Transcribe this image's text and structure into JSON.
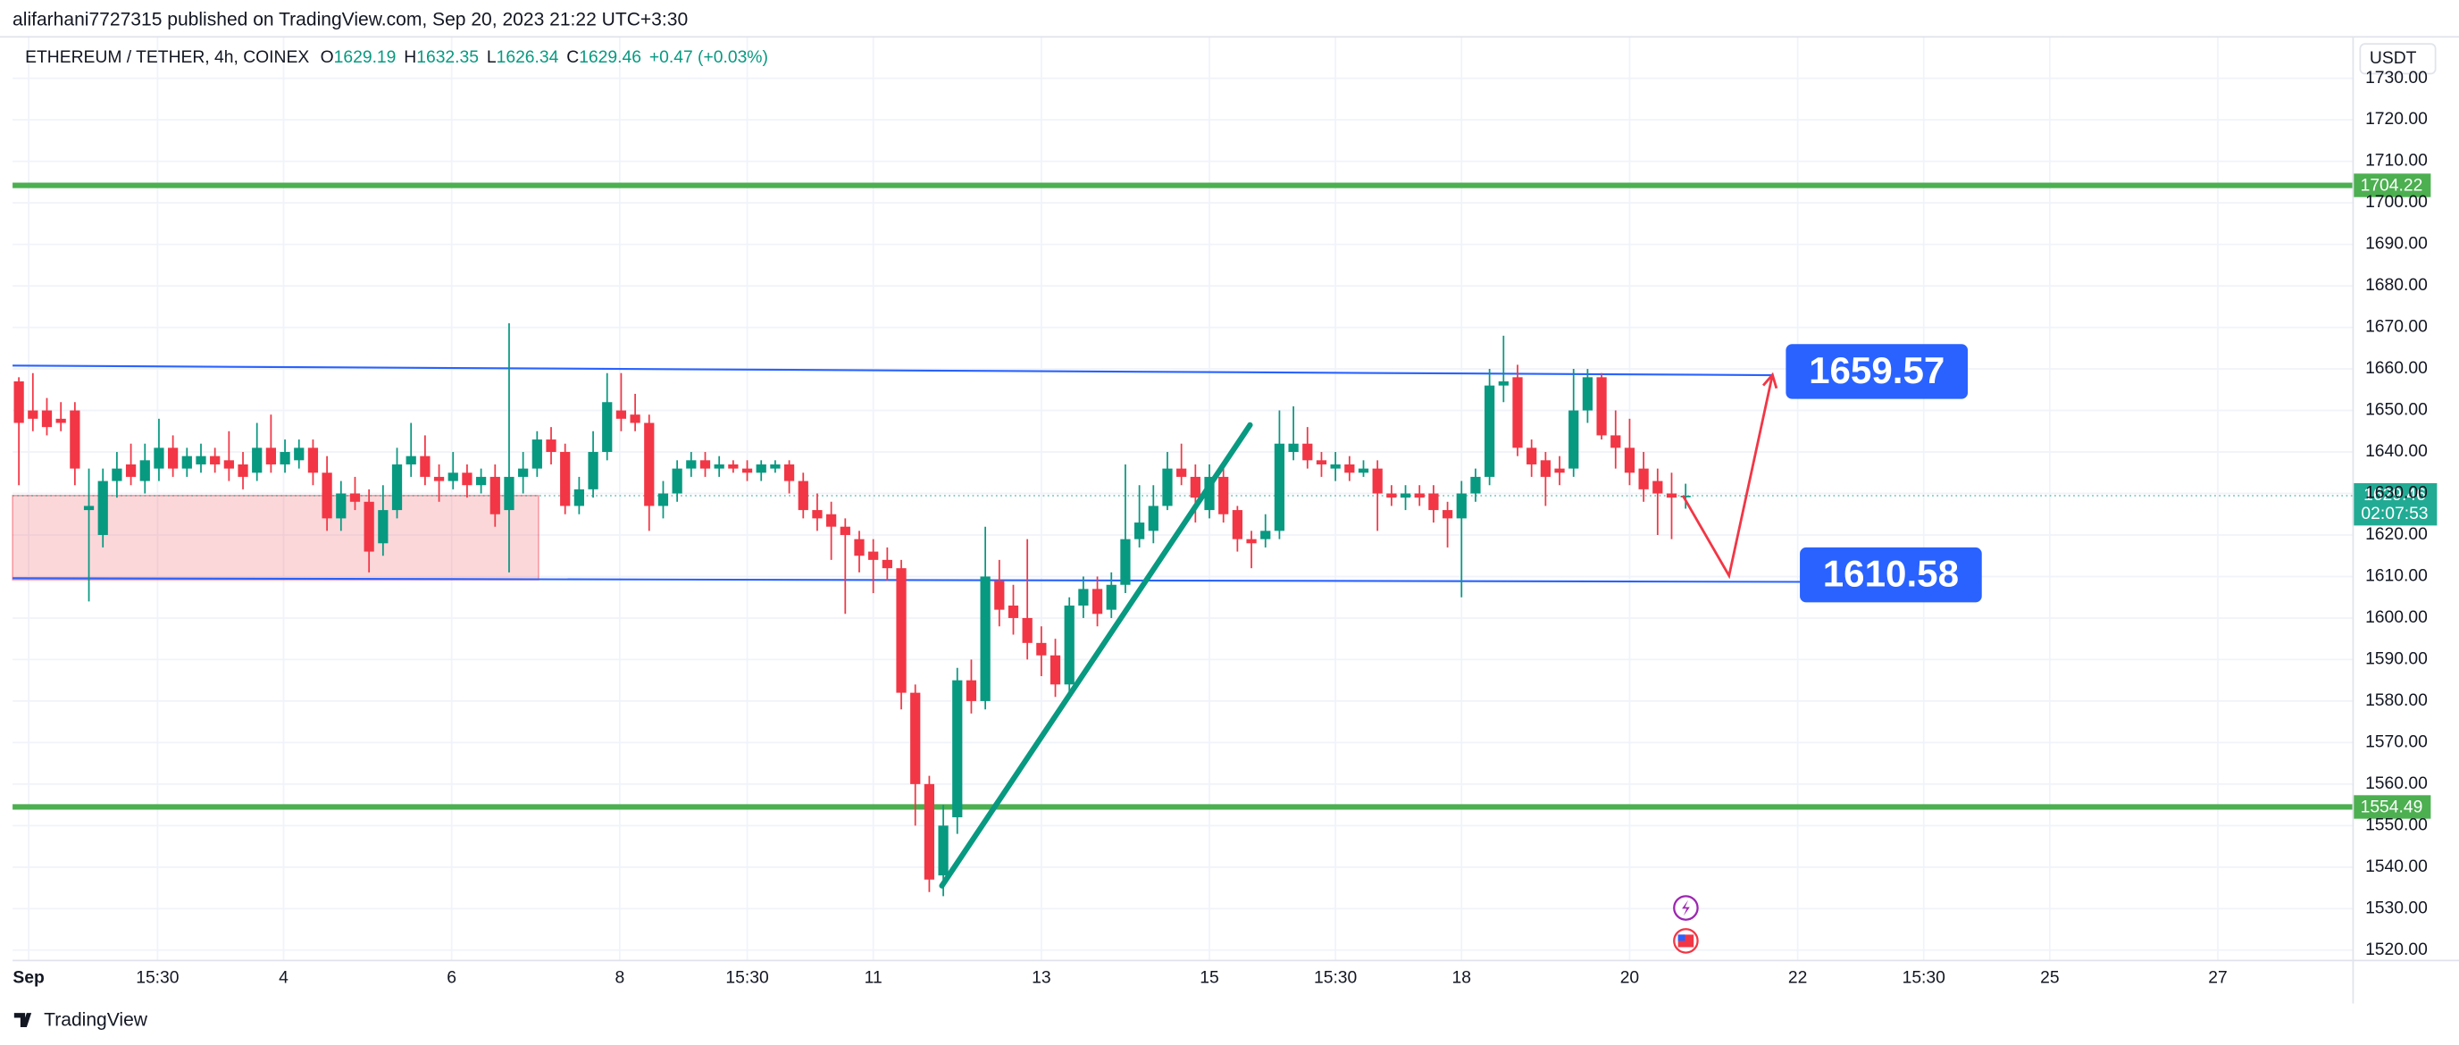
{
  "header": {
    "published": "alifarhani7727315 published on TradingView.com, Sep 20, 2023 21:22 UTC+3:30"
  },
  "legend": {
    "symbol": "ETHEREUM / TETHER, 4h, COINEX",
    "ohlc": [
      {
        "label": "O",
        "value": 1629.19
      },
      {
        "label": "H",
        "value": 1632.35
      },
      {
        "label": "L",
        "value": 1626.34
      },
      {
        "label": "C",
        "value": 1629.46
      }
    ],
    "change": "+0.47 (+0.03%)"
  },
  "currency": "USDT",
  "footer": "TradingView",
  "chart_data": {
    "type": "candlestick",
    "open": [
      1657,
      1650,
      1650,
      1648,
      1650,
      1626,
      1620,
      1633,
      1637,
      1633,
      1636,
      1641,
      1636,
      1637,
      1639,
      1638,
      1637,
      1635,
      1641,
      1637,
      1638,
      1641,
      1635,
      1624,
      1630,
      1628,
      1618,
      1626,
      1637,
      1639,
      1634,
      1633,
      1635,
      1632,
      1634,
      1626,
      1634,
      1636,
      1643,
      1640,
      1627,
      1631,
      1640,
      1650,
      1649,
      1647,
      1627,
      1630,
      1636,
      1638,
      1636,
      1637,
      1636,
      1635,
      1636,
      1637,
      1633,
      1626,
      1625,
      1622,
      1619,
      1616,
      1614,
      1612,
      1582,
      1560,
      1538,
      1552,
      1585,
      1580,
      1609,
      1603,
      1600,
      1594,
      1591,
      1584,
      1603,
      1607,
      1602,
      1608,
      1619,
      1621,
      1627,
      1636,
      1634,
      1626,
      1634,
      1626,
      1619,
      1619,
      1621,
      1640,
      1642,
      1638,
      1636,
      1637,
      1635,
      1636,
      1630,
      1629,
      1630,
      1630,
      1626,
      1624,
      1630,
      1634,
      1656,
      1658,
      1641,
      1638,
      1636,
      1636,
      1650,
      1658,
      1644,
      1641,
      1636,
      1633,
      1630,
      1629.19
    ],
    "high": [
      1658,
      1659,
      1653,
      1652,
      1652,
      1636,
      1636,
      1640,
      1642,
      1642,
      1648,
      1644,
      1641,
      1642,
      1641,
      1645,
      1640,
      1647,
      1649,
      1643,
      1643,
      1643,
      1639,
      1633,
      1634,
      1631,
      1632,
      1641,
      1647,
      1644,
      1637,
      1640,
      1637,
      1636,
      1637,
      1671,
      1640,
      1645,
      1646,
      1642,
      1634,
      1645,
      1659,
      1659,
      1654,
      1649,
      1633,
      1638,
      1640,
      1640,
      1639,
      1638,
      1638,
      1638,
      1638,
      1638,
      1635,
      1630,
      1628,
      1624,
      1621,
      1619,
      1617,
      1614,
      1584,
      1562,
      1555,
      1588,
      1590,
      1622,
      1614,
      1608,
      1619,
      1598,
      1595,
      1605,
      1610,
      1610,
      1611,
      1637,
      1632,
      1632,
      1640,
      1642,
      1637,
      1637,
      1636,
      1627,
      1621,
      1625,
      1650,
      1651,
      1646,
      1640,
      1640,
      1639,
      1638,
      1638,
      1632,
      1632,
      1632,
      1632,
      1628,
      1633,
      1636,
      1660,
      1668,
      1661,
      1643,
      1640,
      1639,
      1660,
      1660,
      1659,
      1650,
      1648,
      1640,
      1636,
      1635,
      1632.35
    ],
    "low": [
      1632,
      1645,
      1644,
      1645,
      1632,
      1604,
      1617,
      1629,
      1632,
      1630,
      1633,
      1634,
      1634,
      1635,
      1635,
      1633,
      1631,
      1633,
      1635,
      1635,
      1636,
      1632,
      1621,
      1621,
      1626,
      1611,
      1615,
      1624,
      1634,
      1632,
      1628,
      1631,
      1629,
      1630,
      1622,
      1611,
      1630,
      1634,
      1637,
      1625,
      1625,
      1629,
      1638,
      1645,
      1645,
      1621,
      1624,
      1628,
      1634,
      1634,
      1634,
      1635,
      1633,
      1633,
      1635,
      1630,
      1624,
      1621,
      1614,
      1601,
      1611,
      1606,
      1609,
      1578,
      1550,
      1534,
      1533,
      1548,
      1577,
      1578,
      1598,
      1596,
      1590,
      1586,
      1581,
      1582,
      1600,
      1598,
      1600,
      1606,
      1617,
      1618,
      1626,
      1632,
      1623,
      1624,
      1623,
      1616,
      1612,
      1617,
      1619,
      1638,
      1636,
      1634,
      1633,
      1633,
      1634,
      1621,
      1627,
      1626,
      1627,
      1623,
      1617,
      1605,
      1628,
      1632,
      1652,
      1639,
      1634,
      1627,
      1632,
      1634,
      1647,
      1643,
      1636,
      1632,
      1628,
      1620,
      1619,
      1626.34
    ],
    "close": [
      1647,
      1648,
      1646,
      1647,
      1636,
      1627,
      1633,
      1636,
      1634,
      1638,
      1641,
      1636,
      1639,
      1639,
      1637,
      1636,
      1634,
      1641,
      1637,
      1640,
      1641,
      1635,
      1624,
      1630,
      1628,
      1616,
      1626,
      1637,
      1639,
      1634,
      1633,
      1635,
      1632,
      1634,
      1625,
      1634,
      1636,
      1643,
      1640,
      1627,
      1631,
      1640,
      1652,
      1648,
      1647,
      1627,
      1630,
      1636,
      1638,
      1636,
      1637,
      1636,
      1635,
      1637,
      1637,
      1633,
      1626,
      1624,
      1622,
      1620,
      1615,
      1614,
      1612,
      1582,
      1560,
      1537,
      1550,
      1585,
      1580,
      1610,
      1602,
      1600,
      1594,
      1591,
      1584,
      1603,
      1607,
      1601,
      1608,
      1619,
      1623,
      1627,
      1636,
      1634,
      1629,
      1634,
      1625,
      1619,
      1618,
      1621,
      1642,
      1642,
      1638,
      1637,
      1637,
      1635,
      1636,
      1630,
      1629,
      1630,
      1629,
      1626,
      1624,
      1630,
      1634,
      1656,
      1657,
      1641,
      1637,
      1634,
      1635,
      1650,
      1658,
      1644,
      1641,
      1635,
      1631,
      1630,
      1629,
      1629.46
    ],
    "up_color": "#089981",
    "down_color": "#f23645",
    "xlim": [
      -0.45,
      166.6
    ],
    "xticks": [
      {
        "value": 0.7,
        "label": "Sep"
      },
      {
        "value": 9.9,
        "label": "15:30"
      },
      {
        "value": 18.9,
        "label": "4"
      },
      {
        "value": 30.9,
        "label": "6"
      },
      {
        "value": 42.9,
        "label": "8"
      },
      {
        "value": 52,
        "label": "15:30"
      },
      {
        "value": 61,
        "label": "11"
      },
      {
        "value": 73,
        "label": "13"
      },
      {
        "value": 85,
        "label": "15"
      },
      {
        "value": 94,
        "label": "15:30"
      },
      {
        "value": 103,
        "label": "18"
      },
      {
        "value": 115,
        "label": "20"
      },
      {
        "value": 127,
        "label": "22"
      },
      {
        "value": 136,
        "label": "15:30"
      },
      {
        "value": 145,
        "label": "25"
      },
      {
        "value": 157,
        "label": "27"
      }
    ],
    "ylim": [
      1517.7,
      1739.8
    ],
    "yticks": [
      {
        "value": 1520,
        "label": "1520.00"
      },
      {
        "value": 1530,
        "label": "1530.00"
      },
      {
        "value": 1540,
        "label": "1540.00"
      },
      {
        "value": 1550,
        "label": "1550.00"
      },
      {
        "value": 1560,
        "label": "1560.00"
      },
      {
        "value": 1570,
        "label": "1570.00"
      },
      {
        "value": 1580,
        "label": "1580.00"
      },
      {
        "value": 1590,
        "label": "1590.00"
      },
      {
        "value": 1600,
        "label": "1600.00"
      },
      {
        "value": 1610,
        "label": "1610.00"
      },
      {
        "value": 1620,
        "label": "1620.00"
      },
      {
        "value": 1630,
        "label": "1630.00"
      },
      {
        "value": 1640,
        "label": "1640.00"
      },
      {
        "value": 1650,
        "label": "1650.00"
      },
      {
        "value": 1660,
        "label": "1660.00"
      },
      {
        "value": 1670,
        "label": "1670.00"
      },
      {
        "value": 1680,
        "label": "1680.00"
      },
      {
        "value": 1690,
        "label": "1690.00"
      },
      {
        "value": 1700,
        "label": "1700.00"
      },
      {
        "value": 1710,
        "label": "1710.00"
      },
      {
        "value": 1720,
        "label": "1720.00"
      },
      {
        "value": 1730,
        "label": "1730.00"
      }
    ],
    "grid": true,
    "levels": [
      {
        "value": 1704.22,
        "color": "#4caf50"
      },
      {
        "value": 1554.49,
        "color": "#4caf50"
      }
    ],
    "last_price": 1629.46,
    "countdown": "02:07:53",
    "last_color": "#22ab94",
    "zone": {
      "x_end": 37.1,
      "low": 1609.2,
      "high": 1629.5,
      "color": "#f23645"
    },
    "channel": [
      {
        "x_end": 125.2,
        "from": 1660.8,
        "to": 1658.5,
        "color": "#2962ff"
      },
      {
        "x_end": 128,
        "from": 1609.6,
        "to": 1608.7,
        "color": "#2962ff"
      }
    ],
    "annotations": [
      {
        "value": 1659.57,
        "x": 127.5
      },
      {
        "value": 1610.58,
        "x": 128.5
      }
    ],
    "annotation_color": "#2962ff",
    "trendline": {
      "x": [
        65.9,
        87.9
      ],
      "y": [
        1535.5,
        1646.5
      ],
      "color": "#089981"
    },
    "projection": {
      "x": [
        118.8,
        122.1,
        125.2
      ],
      "y": [
        1629.5,
        1610.2,
        1658.6
      ],
      "color": "#f23645"
    }
  }
}
